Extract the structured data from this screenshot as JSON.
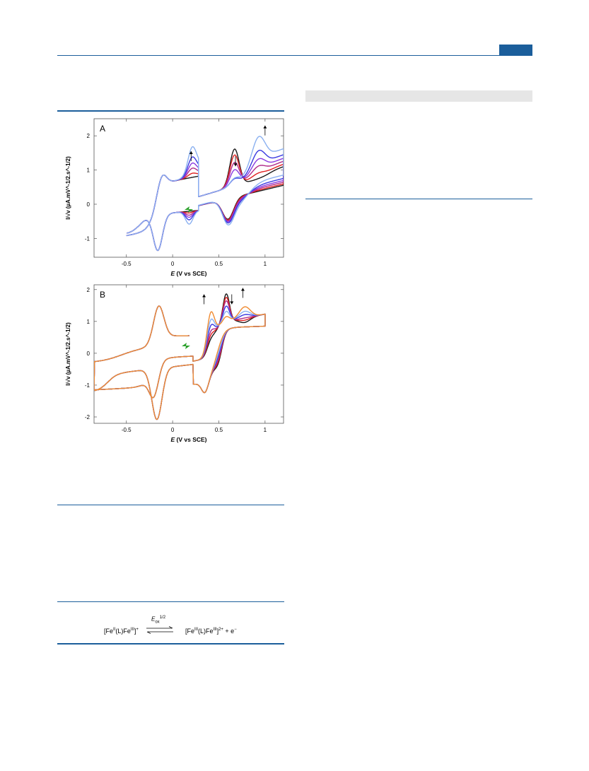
{
  "chart_data": [
    {
      "type": "line",
      "panel_label": "A",
      "xlabel_italic": "E",
      "xlabel_rest": " (V vs SCE)",
      "ylabel": "I/√v (µA.mV^-1/2.s^-1/2)",
      "xlim": [
        -0.85,
        1.2
      ],
      "ylim": [
        -1.55,
        2.5
      ],
      "x_ticks": [
        "-0.5",
        "0",
        "0.5",
        "1"
      ],
      "x_tick_values": [
        -0.5,
        0,
        0.5,
        1
      ],
      "y_ticks": [
        "-1",
        "0",
        "1",
        "2"
      ],
      "y_tick_values": [
        -1,
        0,
        1,
        2
      ],
      "series_colors": [
        "#1a1a1a",
        "#e02020",
        "#b02a8a",
        "#8a3be0",
        "#3a3ae0",
        "#8ab0f0"
      ],
      "peak_scale": [
        1.0,
        1.2,
        1.45,
        1.7,
        2.0,
        2.5
      ],
      "arrows": [
        {
          "x": 0.2,
          "y": 1.55,
          "dir": "up"
        },
        {
          "x": 0.68,
          "y": 1.4,
          "dir": "down"
        },
        {
          "x": 1.0,
          "y": 2.3,
          "dir": "up"
        }
      ]
    },
    {
      "type": "line",
      "panel_label": "B",
      "xlabel_italic": "E",
      "xlabel_rest": " (V vs SCE)",
      "ylabel": "I/√v (µA.mV^-1/2.s^-1/2)",
      "xlim": [
        -0.85,
        1.2
      ],
      "ylim": [
        -2.2,
        2.15
      ],
      "x_ticks": [
        "-0.5",
        "0",
        "0.5",
        "1"
      ],
      "x_tick_values": [
        -0.5,
        0,
        0.5,
        1
      ],
      "y_ticks": [
        "-2",
        "-1",
        "0",
        "1",
        "2"
      ],
      "y_tick_values": [
        -2,
        -1,
        0,
        1,
        2
      ],
      "series_colors": [
        "#1a1a1a",
        "#e02020",
        "#b02a8a",
        "#3a3ae0",
        "#8ab0f0",
        "#f08a30"
      ],
      "peak_scale": [
        0.6,
        0.8,
        1.0,
        1.3,
        1.6,
        2.0
      ],
      "arrows": [
        {
          "x": 0.34,
          "y": 1.85,
          "dir": "up"
        },
        {
          "x": 0.64,
          "y": 1.85,
          "dir": "down"
        },
        {
          "x": 0.76,
          "y": 2.05,
          "dir": "up"
        }
      ]
    }
  ],
  "scheme": {
    "left_pre": "[Fe",
    "left_ox1": "II",
    "left_mid": "(L)Fe",
    "left_ox2": "III",
    "left_end": "]",
    "left_charge": "+",
    "arrow_label_pre": "E",
    "arrow_label_sub": "ox",
    "arrow_label_sup": "1/2",
    "right_pre": "[Fe",
    "right_ox1": "III",
    "right_mid": "(L)Fe",
    "right_ox2": "III",
    "right_end": "]",
    "right_charge": "2+",
    "right_tail": " + e",
    "right_tail_sup": "−"
  }
}
